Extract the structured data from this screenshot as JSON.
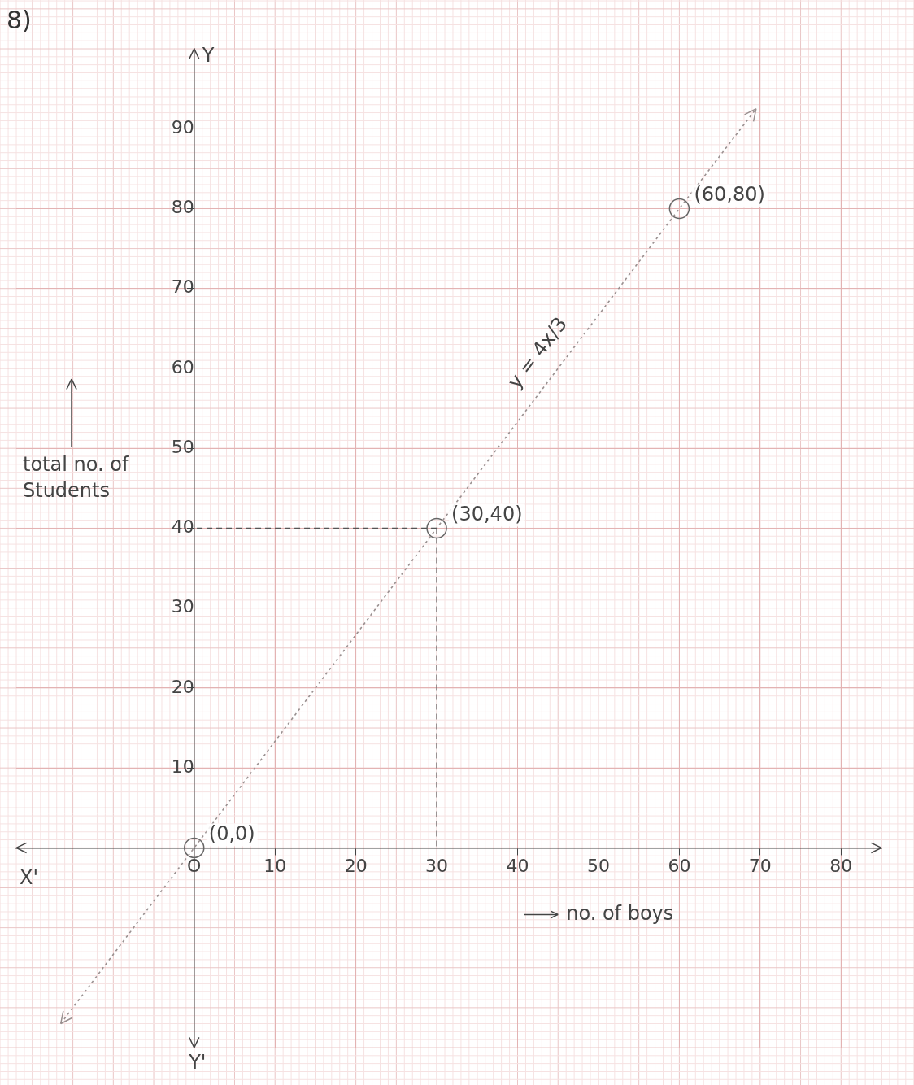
{
  "chart_data": {
    "type": "line",
    "title": "8)",
    "x_label": "no. of boys",
    "y_label": "total no. of Students",
    "x": [
      -16.5,
      0,
      30,
      60,
      69.5
    ],
    "series": [
      {
        "name": "y = 4x/3",
        "color": "#9a9090",
        "line_style": "dotted",
        "values": [
          -22,
          0,
          40,
          80,
          92.5
        ]
      }
    ],
    "xlim": [
      -22,
      85
    ],
    "ylim": [
      -25,
      100
    ],
    "xticks": [
      {
        "value": 0,
        "label": "O"
      },
      10,
      20,
      30,
      40,
      50,
      60,
      70,
      80
    ],
    "yticks": [
      10,
      20,
      30,
      40,
      50,
      60,
      70,
      80,
      90
    ],
    "grid": true,
    "marker": "circle",
    "annotations": [
      {
        "text": "(0,0)",
        "x": 0,
        "y": 0
      },
      {
        "text": "(30,40)",
        "x": 30,
        "y": 40
      },
      {
        "text": "(60,80)",
        "x": 60,
        "y": 80
      }
    ],
    "guides": [
      {
        "x": 30,
        "y": 40
      }
    ],
    "axis_ends": {
      "x_min": "X'",
      "y_max": "Y",
      "y_min": "Y'"
    }
  }
}
